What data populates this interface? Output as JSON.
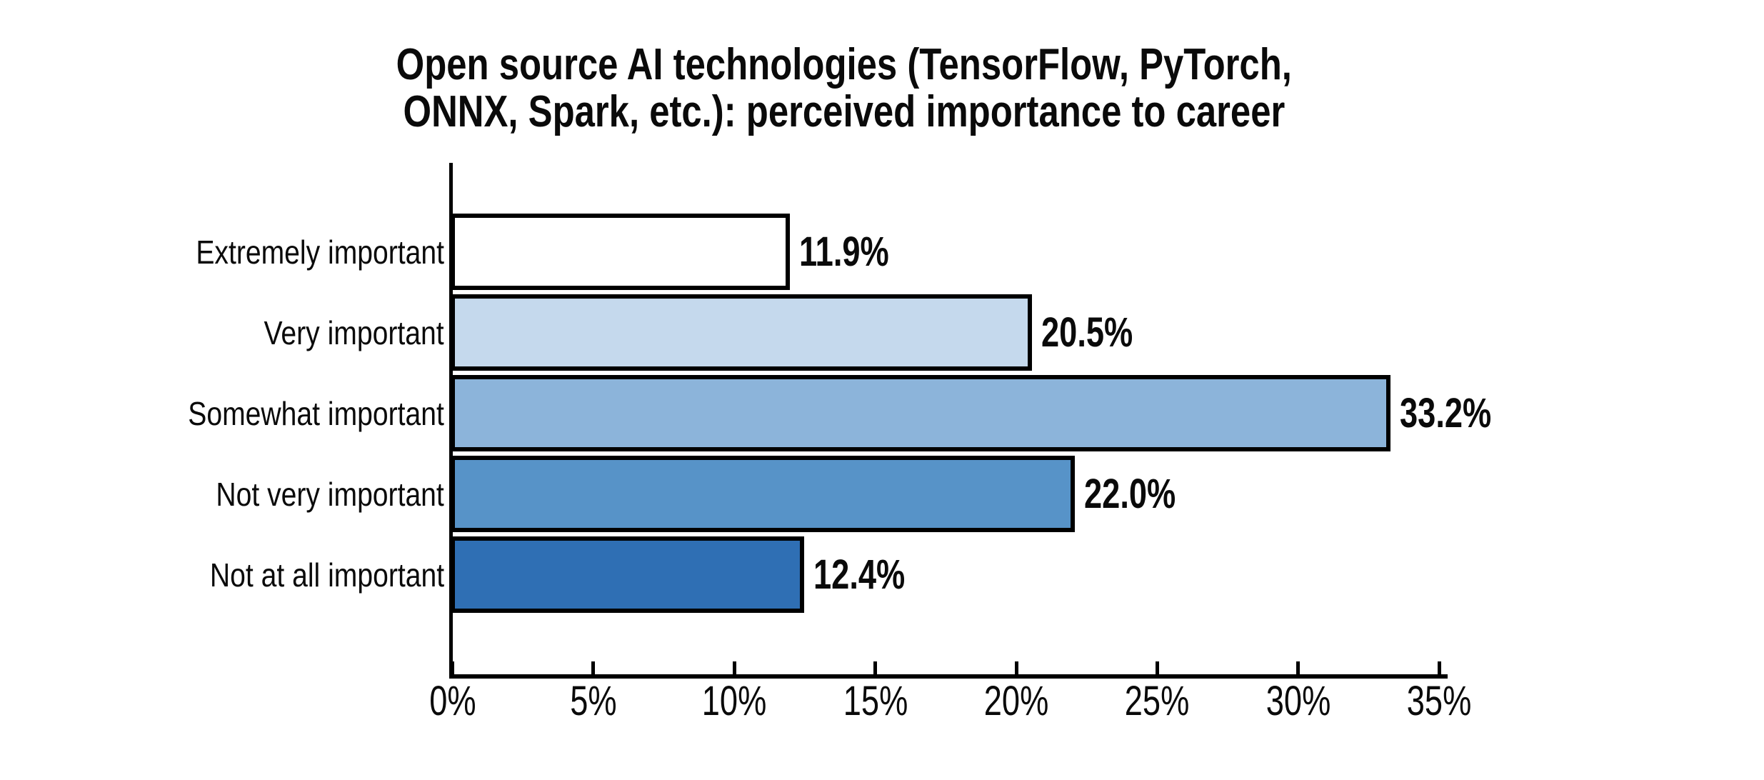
{
  "chart_data": {
    "type": "bar",
    "orientation": "horizontal",
    "title_lines": [
      "Open source AI technologies (TensorFlow, PyTorch,",
      "ONNX, Spark, etc.): perceived importance to career"
    ],
    "categories": [
      "Extremely important",
      "Very important",
      "Somewhat important",
      "Not very important",
      "Not at all important"
    ],
    "values": [
      11.9,
      20.5,
      33.2,
      22.0,
      12.4
    ],
    "value_labels": [
      "11.9%",
      "20.5%",
      "33.2%",
      "22.0%",
      "12.4%"
    ],
    "bar_colors": [
      "#ffffff",
      "#c5d9ed",
      "#8cb4da",
      "#5793c8",
      "#2f6fb4"
    ],
    "bar_border_color": "#000000",
    "x_ticks_values": [
      0,
      5,
      10,
      15,
      20,
      25,
      30,
      35
    ],
    "x_tick_labels": [
      "0%",
      "5%",
      "10%",
      "15%",
      "20%",
      "25%",
      "30%",
      "35%"
    ],
    "xlim": [
      0,
      35
    ],
    "xlabel": "",
    "ylabel": "",
    "grid": false,
    "legend": null,
    "axis_color": "#000000",
    "text_color": "#0a0a0a"
  }
}
